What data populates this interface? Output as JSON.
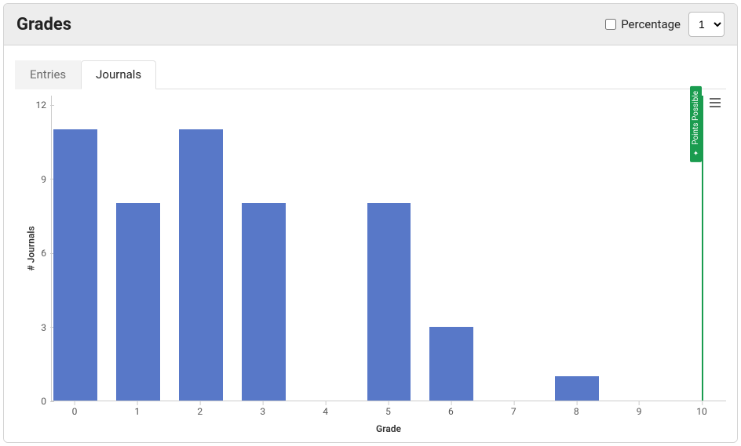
{
  "header": {
    "title": "Grades",
    "percentage_label": "Percentage",
    "percentage_checked": false,
    "precision_value": "1"
  },
  "tabs": [
    {
      "label": "Entries",
      "active": false
    },
    {
      "label": "Journals",
      "active": true
    }
  ],
  "chart": {
    "type": "bar",
    "xlabel": "Grade",
    "ylabel": "# Journals",
    "yaxis": {
      "min": 0,
      "max": 12,
      "step": 3,
      "ticks": [
        0,
        3,
        6,
        9,
        12
      ]
    },
    "xaxis": {
      "min": 0,
      "max": 10,
      "ticks": [
        0,
        1,
        2,
        3,
        4,
        5,
        6,
        7,
        8,
        9,
        10
      ]
    },
    "bar_color": "#5878c8",
    "bar_width": 0.7,
    "grid_color": "#e0e0e0",
    "axis_color": "#cccccc",
    "background_color": "#ffffff",
    "data": [
      {
        "x": 0,
        "y": 11
      },
      {
        "x": 1,
        "y": 8
      },
      {
        "x": 2,
        "y": 11
      },
      {
        "x": 3,
        "y": 8
      },
      {
        "x": 4,
        "y": 0
      },
      {
        "x": 5,
        "y": 8
      },
      {
        "x": 6,
        "y": 3
      },
      {
        "x": 7,
        "y": 0
      },
      {
        "x": 8,
        "y": 1
      },
      {
        "x": 9,
        "y": 0
      },
      {
        "x": 10,
        "y": 0
      }
    ],
    "reference_line": {
      "x": 10,
      "color": "#1a9c4f",
      "label": "Points Possible"
    },
    "label_fontsize": 12,
    "tick_fontsize": 12
  }
}
